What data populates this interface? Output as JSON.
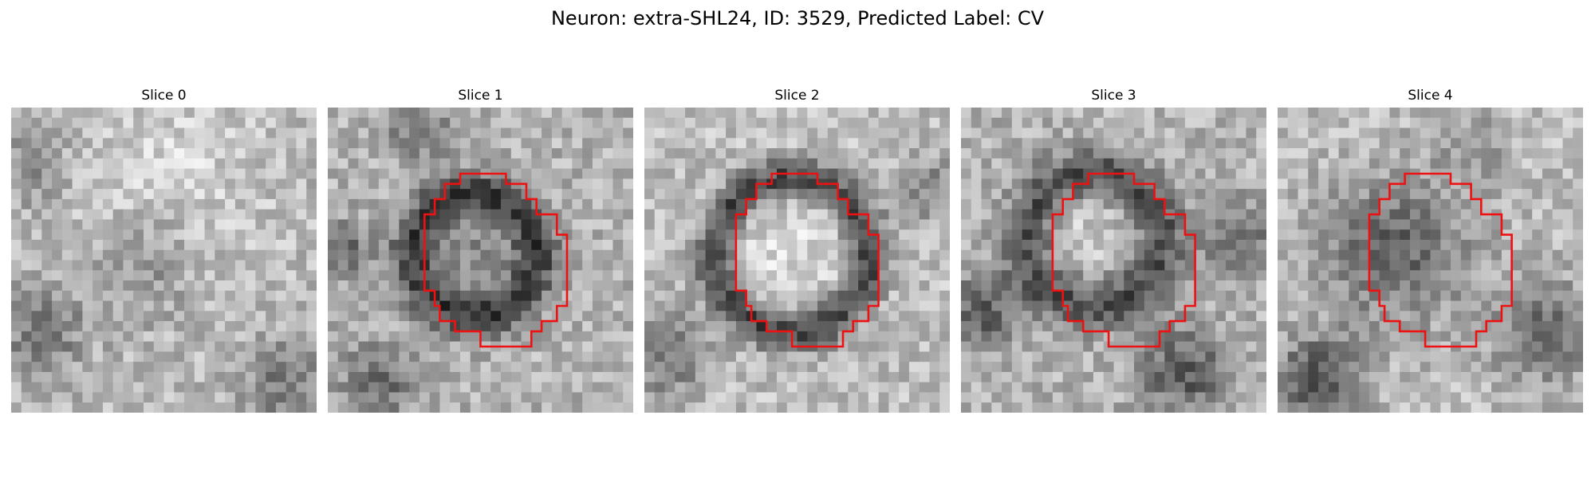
{
  "figure": {
    "title": "Neuron: extra-SHL24, ID: 3529, Predicted Label: CV"
  },
  "slices": [
    {
      "label": "Slice 0",
      "has_contour": false
    },
    {
      "label": "Slice 1",
      "has_contour": true
    },
    {
      "label": "Slice 2",
      "has_contour": true
    },
    {
      "label": "Slice 3",
      "has_contour": true
    },
    {
      "label": "Slice 4",
      "has_contour": true
    }
  ],
  "colors": {
    "contour": "#ee1111",
    "background": "#ffffff"
  }
}
